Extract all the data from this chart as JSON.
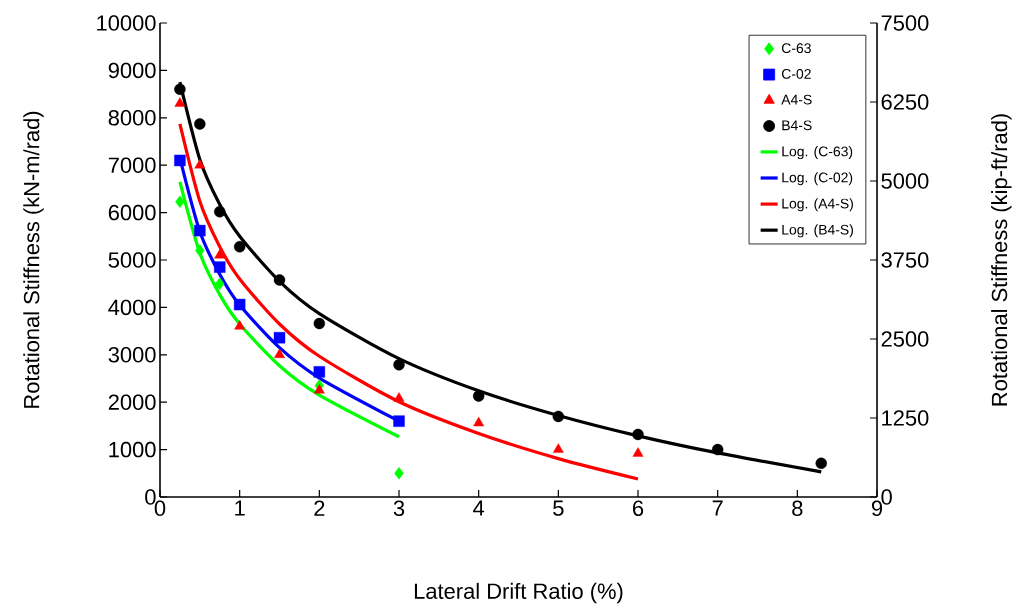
{
  "chart_data": {
    "type": "scatter",
    "xlabel": "Lateral Drift Ratio (%)",
    "ylabel": "Rotational Stiffness (kN-m/rad)",
    "y2label": "Rotational Stiffness (kip-ft/rad)",
    "xlim": [
      0,
      9
    ],
    "xticks": [
      0,
      1,
      2,
      3,
      4,
      5,
      6,
      7,
      8,
      9
    ],
    "ylim": [
      0,
      10000
    ],
    "yticks": [
      0,
      1000,
      2000,
      3000,
      4000,
      5000,
      6000,
      7000,
      8000,
      9000,
      10000
    ],
    "y2lim": [
      0,
      7500
    ],
    "y2ticks": [
      0,
      1250,
      2500,
      3750,
      5000,
      6250,
      7500
    ],
    "grid": false,
    "legend": "top right",
    "series": [
      {
        "name": "C-63",
        "marker": "diamond",
        "color": "#00ff00",
        "x": [
          0.25,
          0.5,
          0.75,
          1,
          1.5,
          2,
          3
        ],
        "values": [
          6230,
          5200,
          4500,
          null,
          null,
          2350,
          500
        ]
      },
      {
        "name": "C-02",
        "marker": "square",
        "color": "#0000ff",
        "x": [
          0.25,
          0.5,
          0.75,
          1,
          1.5,
          2,
          3
        ],
        "values": [
          7100,
          5620,
          4850,
          4060,
          3360,
          2640,
          1600
        ]
      },
      {
        "name": "A4-S",
        "marker": "triangle",
        "color": "#ff0000",
        "x": [
          0.25,
          0.5,
          0.75,
          1,
          1.5,
          2,
          3,
          4,
          5,
          6
        ],
        "values": [
          8300,
          7000,
          5100,
          3600,
          3000,
          2250,
          2080,
          1560,
          1000,
          920
        ]
      },
      {
        "name": "B4-S",
        "marker": "circle",
        "color": "#000000",
        "x": [
          0.25,
          0.5,
          0.75,
          1,
          1.5,
          2,
          3,
          4,
          5,
          6,
          7,
          8.3
        ],
        "values": [
          8600,
          7870,
          6020,
          5280,
          4580,
          3660,
          2790,
          2130,
          1700,
          1320,
          1000,
          710
        ]
      },
      {
        "name": "Log. (C-63)",
        "type": "line",
        "line_style": "solid",
        "color": "#00ff00",
        "x": [
          0.25,
          0.5,
          0.75,
          1,
          1.5,
          2,
          3
        ],
        "values": [
          6650,
          5150,
          4270,
          3650,
          2770,
          2150,
          1270
        ]
      },
      {
        "name": "Log. (C-02)",
        "type": "line",
        "line_style": "solid",
        "color": "#0000ff",
        "x": [
          0.25,
          0.5,
          0.75,
          1,
          1.5,
          2,
          3
        ],
        "values": [
          7150,
          5600,
          4700,
          4050,
          3150,
          2510,
          1600
        ]
      },
      {
        "name": "Log. (A4-S)",
        "type": "line",
        "line_style": "solid",
        "color": "#ff0000",
        "x": [
          0.25,
          0.5,
          0.75,
          1,
          1.5,
          2,
          3,
          4,
          5,
          6
        ],
        "values": [
          7870,
          6240,
          5280,
          4600,
          3650,
          2970,
          2010,
          1340,
          810,
          380
        ]
      },
      {
        "name": "Log. (B4-S)",
        "type": "line",
        "line_style": "solid",
        "color": "#000000",
        "x": [
          0.25,
          0.5,
          0.75,
          1,
          1.5,
          2,
          3,
          4,
          5,
          6,
          7,
          8.3
        ],
        "values": [
          8750,
          7120,
          6170,
          5500,
          4550,
          3870,
          2920,
          2240,
          1720,
          1290,
          930,
          530
        ]
      }
    ]
  }
}
